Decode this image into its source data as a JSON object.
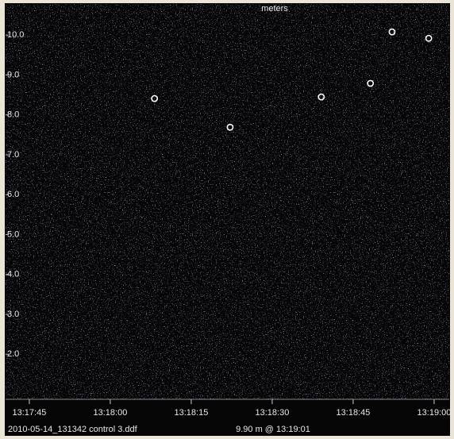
{
  "chart_data": {
    "type": "scatter",
    "title": "meters",
    "footer_left": "2010-05-14_131342 control 3.ddf",
    "footer_right": "9.90 m @ 13:19:01",
    "x": [
      47888.2,
      47902.2,
      47919.1,
      47928.2,
      47932.2,
      47939.0
    ],
    "values": [
      8.41,
      7.69,
      8.45,
      8.79,
      10.08,
      9.92
    ],
    "color": "#ffffff",
    "xlim": [
      47860.6,
      47942.8
    ],
    "xticks": [
      {
        "value": 47865,
        "label": "13:17:45"
      },
      {
        "value": 47880,
        "label": "13:18:00"
      },
      {
        "value": 47895,
        "label": "13:18:15"
      },
      {
        "value": 47910,
        "label": "13:18:30"
      },
      {
        "value": 47925,
        "label": "13:18:45"
      },
      {
        "value": 47940,
        "label": "13:19:00"
      }
    ],
    "ylim": [
      0.87,
      10.78
    ],
    "yticks": [
      {
        "value": 2,
        "label": "2.0"
      },
      {
        "value": 3,
        "label": "3.0"
      },
      {
        "value": 4,
        "label": "4.0"
      },
      {
        "value": 5,
        "label": "5.0"
      },
      {
        "value": 6,
        "label": "6.0"
      },
      {
        "value": 7,
        "label": "7.0"
      },
      {
        "value": 8,
        "label": "8.0"
      },
      {
        "value": 9,
        "label": "9.0"
      },
      {
        "value": 10,
        "label": "10.0"
      }
    ]
  }
}
